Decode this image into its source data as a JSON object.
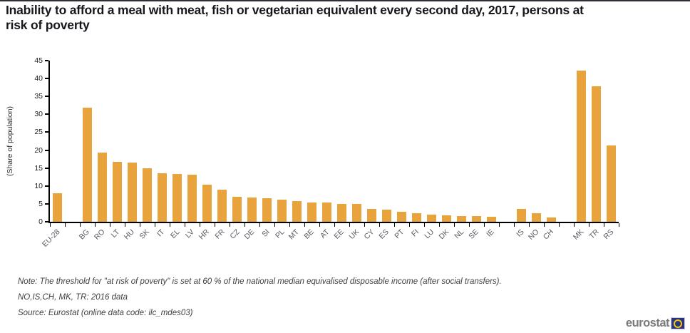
{
  "title": {
    "line1": "Inability to afford a meal with meat, fish or vegetarian equivalent every second day, 2017, persons at",
    "line2": "risk of poverty"
  },
  "chart_data": {
    "type": "bar",
    "title": "Inability to afford a meal with meat, fish or vegetarian equivalent every second day, 2017, persons at risk of poverty",
    "ylabel": "(Share of population)",
    "xlabel": "",
    "ylim": [
      0,
      45
    ],
    "yticks": [
      0,
      5,
      10,
      15,
      20,
      25,
      30,
      35,
      40,
      45
    ],
    "grid": false,
    "legend": false,
    "bar_color": "#E8A33D",
    "categories": [
      "EU-28",
      "BG",
      "RO",
      "LT",
      "HU",
      "SK",
      "IT",
      "EL",
      "LV",
      "HR",
      "FR",
      "CZ",
      "DE",
      "SI",
      "PL",
      "MT",
      "BE",
      "AT",
      "EE",
      "UK",
      "CY",
      "ES",
      "PT",
      "FI",
      "LU",
      "DK",
      "NL",
      "SE",
      "IE",
      "IS",
      "NO",
      "CH",
      "MK",
      "TR",
      "RS"
    ],
    "values": [
      8.0,
      31.9,
      19.3,
      16.7,
      16.5,
      15.0,
      13.5,
      13.3,
      13.1,
      10.3,
      8.9,
      7.0,
      6.8,
      6.5,
      6.2,
      5.8,
      5.4,
      5.3,
      5.0,
      4.9,
      3.6,
      3.4,
      2.8,
      2.4,
      2.0,
      1.8,
      1.6,
      1.5,
      1.4,
      3.5,
      2.4,
      1.2,
      42.2,
      37.9,
      21.3
    ],
    "gap_after": [
      "EU-28",
      "IE",
      "CH"
    ]
  },
  "notes": {
    "note1": "Note: The threshold for \"at risk of poverty\" is set at 60 % of the national median equivalised disposable income (after social transfers).",
    "note2": "NO,IS,CH, MK, TR: 2016 data",
    "note3": "Source: Eurostat (online data code: ilc_mdes03)"
  },
  "logo": {
    "text": "eurostat"
  }
}
